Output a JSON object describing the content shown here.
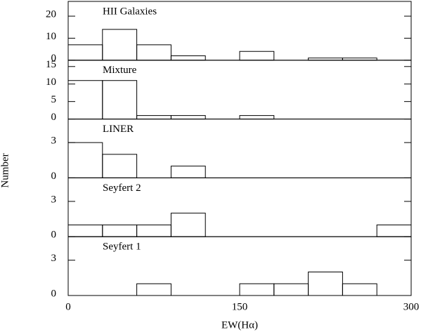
{
  "chart_data": [
    {
      "type": "histogram",
      "title": "HII Galaxies",
      "bins": [
        0,
        30,
        60,
        90,
        120,
        150,
        180,
        210,
        240,
        270,
        300
      ],
      "values": [
        7,
        14,
        7,
        2,
        0,
        4,
        0,
        1,
        1,
        0
      ],
      "xlim": [
        0,
        300
      ],
      "ylim": [
        0,
        26.7
      ],
      "yticks": [
        0,
        10,
        20
      ],
      "color": "#000000"
    },
    {
      "type": "histogram",
      "title": "Mixture",
      "bins": [
        0,
        30,
        60,
        90,
        120,
        150,
        180,
        210,
        240,
        270,
        300
      ],
      "values": [
        11,
        11,
        1,
        1,
        0,
        1,
        0,
        0,
        0,
        0
      ],
      "xlim": [
        0,
        300
      ],
      "ylim": [
        0,
        16.8
      ],
      "yticks": [
        0,
        5,
        10,
        15
      ],
      "color": "#000000"
    },
    {
      "type": "histogram",
      "title": "LINER",
      "bins": [
        0,
        30,
        60,
        90,
        120,
        150,
        180,
        210,
        240,
        270,
        300
      ],
      "values": [
        3,
        2,
        0,
        1,
        0,
        0,
        0,
        0,
        0,
        0
      ],
      "xlim": [
        0,
        300
      ],
      "ylim": [
        0,
        5
      ],
      "yticks": [
        0,
        3
      ],
      "ylabel": "Number",
      "color": "#000000"
    },
    {
      "type": "histogram",
      "title": "Seyfert 2",
      "bins": [
        0,
        30,
        60,
        90,
        120,
        150,
        180,
        210,
        240,
        270,
        300
      ],
      "values": [
        1,
        1,
        1,
        2,
        0,
        0,
        0,
        0,
        0,
        1
      ],
      "xlim": [
        0,
        300
      ],
      "ylim": [
        0,
        5
      ],
      "yticks": [
        0,
        3
      ],
      "color": "#000000"
    },
    {
      "type": "histogram",
      "title": "Seyfert 1",
      "bins": [
        0,
        30,
        60,
        90,
        120,
        150,
        180,
        210,
        240,
        270,
        300
      ],
      "values": [
        0,
        0,
        1,
        0,
        0,
        1,
        1,
        2,
        1,
        0
      ],
      "xlim": [
        0,
        300
      ],
      "ylim": [
        0,
        5
      ],
      "yticks": [
        0,
        3
      ],
      "xticks": [
        0,
        150,
        300
      ],
      "xlabel": "EW(Hα)",
      "color": "#000000"
    }
  ]
}
